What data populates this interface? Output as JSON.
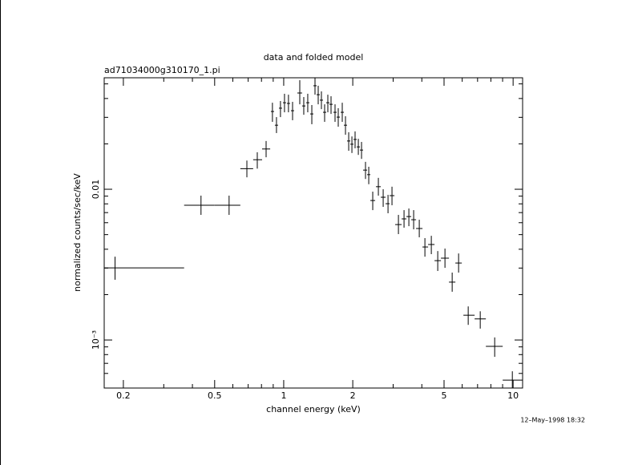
{
  "chart_data": {
    "type": "errorbar",
    "title": "data and folded model",
    "subtitle": "ad71034000g310170_1.pi",
    "xlabel": "channel energy (keV)",
    "ylabel": "normalized counts/sec/keV",
    "timestamp": "12–May–1998 18:32",
    "xscale": "log",
    "yscale": "log",
    "color": "#000000",
    "xlim": [
      0.165,
      11.0
    ],
    "ylim": [
      0.00048,
      0.0549
    ],
    "xticks": [
      0.2,
      0.5,
      1,
      2,
      5,
      10
    ],
    "xminorticks": [
      0.3,
      0.4,
      0.6,
      0.7,
      0.8,
      0.9,
      3,
      4,
      6,
      7,
      8,
      9
    ],
    "yticks": [
      0.01,
      {
        "value": 0.001,
        "label": "10⁻³"
      }
    ],
    "yminorticks": [
      0.0006,
      0.0007,
      0.0008,
      0.0009,
      0.002,
      0.003,
      0.004,
      0.005,
      0.006,
      0.007,
      0.008,
      0.009,
      0.02,
      0.03,
      0.04,
      0.05
    ],
    "x": [
      0.184,
      0.436,
      0.578,
      0.691,
      0.767,
      0.838,
      0.893,
      0.93,
      0.968,
      1.008,
      1.049,
      1.093,
      1.175,
      1.223,
      1.273,
      1.326,
      1.369,
      1.414,
      1.46,
      1.508,
      1.557,
      1.608,
      1.674,
      1.729,
      1.8,
      1.859,
      1.92,
      1.983,
      2.047,
      2.115,
      2.184,
      2.273,
      2.348,
      2.444,
      2.586,
      2.714,
      2.849,
      2.965,
      3.163,
      3.346,
      3.512,
      3.685,
      3.899,
      4.126,
      4.4,
      4.693,
      5.046,
      5.425,
      5.786,
      6.372,
      7.19,
      8.312,
      9.923
    ],
    "x_low": [
      0.165,
      0.368,
      0.5,
      0.647,
      0.736,
      0.805,
      0.879,
      0.915,
      0.953,
      0.992,
      1.033,
      1.075,
      1.147,
      1.203,
      1.253,
      1.304,
      1.347,
      1.391,
      1.437,
      1.484,
      1.532,
      1.582,
      1.647,
      1.701,
      1.771,
      1.829,
      1.889,
      1.951,
      2.015,
      2.081,
      2.149,
      2.219,
      2.31,
      2.386,
      2.524,
      2.649,
      2.78,
      2.895,
      3.062,
      3.266,
      3.428,
      3.597,
      3.776,
      4.027,
      4.261,
      4.544,
      4.846,
      5.253,
      5.602,
      6.072,
      6.796,
      7.607,
      9.009
    ],
    "x_high": [
      0.368,
      0.5,
      0.647,
      0.736,
      0.805,
      0.873,
      0.908,
      0.945,
      0.984,
      1.024,
      1.066,
      1.11,
      1.203,
      1.243,
      1.294,
      1.347,
      1.391,
      1.437,
      1.484,
      1.532,
      1.582,
      1.634,
      1.701,
      1.757,
      1.829,
      1.889,
      1.951,
      2.015,
      2.081,
      2.149,
      2.219,
      2.31,
      2.386,
      2.504,
      2.649,
      2.78,
      2.895,
      3.038,
      3.266,
      3.428,
      3.597,
      3.776,
      4.027,
      4.261,
      4.544,
      4.846,
      5.253,
      5.602,
      5.975,
      6.796,
      7.607,
      9.009,
      11.0
    ],
    "values": [
      0.00301,
      0.00783,
      0.00783,
      0.0137,
      0.0157,
      0.0185,
      0.0328,
      0.0266,
      0.0345,
      0.0375,
      0.0371,
      0.0332,
      0.0435,
      0.0357,
      0.0375,
      0.0316,
      0.0486,
      0.0424,
      0.039,
      0.0324,
      0.0375,
      0.0366,
      0.0324,
      0.0301,
      0.0324,
      0.0266,
      0.0209,
      0.0199,
      0.0214,
      0.0191,
      0.0182,
      0.0134,
      0.0125,
      0.00842,
      0.0104,
      0.00885,
      0.00802,
      0.00907,
      0.00583,
      0.00636,
      0.00659,
      0.00628,
      0.00549,
      0.00414,
      0.0043,
      0.00336,
      0.00349,
      0.00242,
      0.00324,
      0.00146,
      0.00138,
      0.000907,
      0.000542
    ],
    "low": [
      0.00251,
      0.00676,
      0.00676,
      0.012,
      0.0137,
      0.0163,
      0.028,
      0.0236,
      0.0301,
      0.0324,
      0.0324,
      0.0287,
      0.0366,
      0.0312,
      0.0324,
      0.027,
      0.0424,
      0.0366,
      0.034,
      0.028,
      0.0324,
      0.0316,
      0.028,
      0.026,
      0.028,
      0.023,
      0.018,
      0.0174,
      0.0187,
      0.0169,
      0.0159,
      0.0117,
      0.0108,
      0.00727,
      0.00907,
      0.00764,
      0.00693,
      0.00783,
      0.00504,
      0.00556,
      0.00569,
      0.00542,
      0.0048,
      0.00357,
      0.00371,
      0.00287,
      0.00301,
      0.00209,
      0.0028,
      0.00126,
      0.00119,
      0.000773,
      0.00048
    ],
    "high": [
      0.00357,
      0.00907,
      0.00907,
      0.0155,
      0.0176,
      0.0209,
      0.0375,
      0.0301,
      0.0385,
      0.043,
      0.0424,
      0.038,
      0.0529,
      0.0409,
      0.043,
      0.0362,
      0.0549,
      0.0486,
      0.0446,
      0.0366,
      0.0424,
      0.0414,
      0.0366,
      0.0345,
      0.0375,
      0.0305,
      0.0239,
      0.0224,
      0.0242,
      0.0216,
      0.0206,
      0.0152,
      0.0141,
      0.00964,
      0.0119,
      0.01,
      0.00918,
      0.0104,
      0.00676,
      0.00727,
      0.00745,
      0.00727,
      0.00628,
      0.00474,
      0.00491,
      0.00389,
      0.00404,
      0.0028,
      0.00375,
      0.00167,
      0.00155,
      0.00104,
      0.00062
    ]
  }
}
